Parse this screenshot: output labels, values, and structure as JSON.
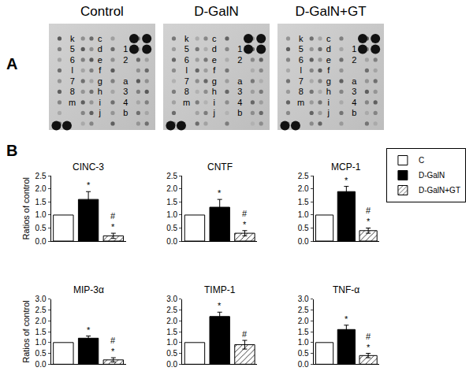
{
  "panel_a": {
    "label": "A",
    "blots": [
      {
        "title": "Control",
        "label_columns": [
          [
            "k",
            "5",
            "6",
            "l",
            "7",
            "8",
            "m"
          ],
          [
            "c",
            "d",
            "e",
            "f",
            "g",
            "h",
            "i",
            "j"
          ],
          [
            "1",
            "2",
            "a",
            "3",
            "4",
            "b"
          ]
        ]
      },
      {
        "title": "D-GalN",
        "label_columns": [
          [
            "k",
            "5",
            "6",
            "l",
            "7",
            "8",
            "m"
          ],
          [
            "c",
            "d",
            "e",
            "f",
            "g",
            "h",
            "i",
            "j"
          ],
          [
            "1",
            "2",
            "a",
            "3",
            "4",
            "b"
          ]
        ]
      },
      {
        "title": "D-GalN+GT",
        "label_columns": [
          [
            "k",
            "5",
            "6",
            "l",
            "7",
            "8",
            "m"
          ],
          [
            "c",
            "d",
            "e",
            "f",
            "g",
            "h",
            "i",
            "j"
          ],
          [
            "1",
            "2",
            "a",
            "3",
            "4",
            "b"
          ]
        ]
      }
    ]
  },
  "panel_b_label": "B",
  "chart_data": [
    {
      "type": "bar",
      "title": "CINC-3",
      "ylabel": "Ratios of control",
      "ylim": [
        0,
        2.5
      ],
      "yticks": [
        {
          "value": 0,
          "label": "0.0"
        },
        0.5,
        {
          "value": 1,
          "label": "1.0"
        },
        1.5,
        {
          "value": 2,
          "label": "2.0"
        },
        2.5
      ],
      "tick_labels": "y",
      "series": [
        {
          "name": "C",
          "color": "#ffffff",
          "values": [
            1.0
          ]
        },
        {
          "name": "D-GalN",
          "color": "#000000",
          "values": [
            1.6
          ],
          "errors": [
            0.3
          ],
          "significance": [
            "*"
          ]
        },
        {
          "name": "D-GalN+GT",
          "color": "#ffffff",
          "marker": "hatched",
          "values": [
            0.2
          ],
          "errors": [
            0.1
          ],
          "significance": [
            "#",
            "*"
          ]
        }
      ]
    },
    {
      "type": "bar",
      "title": "CNTF",
      "ylim": [
        0,
        2.5
      ],
      "yticks": [
        {
          "value": 0,
          "label": "0.0"
        },
        0.5,
        {
          "value": 1,
          "label": "1.0"
        },
        1.5,
        {
          "value": 2,
          "label": "2.0"
        },
        2.5
      ],
      "tick_labels": "y",
      "series": [
        {
          "name": "C",
          "color": "#ffffff",
          "values": [
            1.0
          ]
        },
        {
          "name": "D-GalN",
          "color": "#000000",
          "values": [
            1.3
          ],
          "errors": [
            0.3
          ],
          "significance": [
            "*"
          ]
        },
        {
          "name": "D-GalN+GT",
          "color": "#ffffff",
          "marker": "hatched",
          "values": [
            0.3
          ],
          "errors": [
            0.1
          ],
          "significance": [
            "#",
            "*"
          ]
        }
      ]
    },
    {
      "type": "bar",
      "title": "MCP-1",
      "ylim": [
        0,
        2.5
      ],
      "legend": "right",
      "yticks": [
        {
          "value": 0,
          "label": "0.0"
        },
        0.5,
        {
          "value": 1,
          "label": "1.0"
        },
        1.5,
        {
          "value": 2,
          "label": "2.0"
        },
        2.5
      ],
      "tick_labels": "y",
      "series": [
        {
          "name": "C",
          "color": "#ffffff",
          "values": [
            1.0
          ]
        },
        {
          "name": "D-GalN",
          "color": "#000000",
          "values": [
            1.9
          ],
          "errors": [
            0.2
          ],
          "significance": [
            "*"
          ]
        },
        {
          "name": "D-GalN+GT",
          "color": "#ffffff",
          "marker": "hatched",
          "values": [
            0.4
          ],
          "errors": [
            0.1
          ],
          "significance": [
            "#",
            "*"
          ]
        }
      ]
    },
    {
      "type": "bar",
      "title": "MIP-3α",
      "ylabel": "Ratios of control",
      "ylim": [
        0,
        3
      ],
      "yticks": [
        {
          "value": 0,
          "label": "0.0"
        },
        0.5,
        {
          "value": 1,
          "label": "1.0"
        },
        1.5,
        {
          "value": 2,
          "label": "2.0"
        },
        2.5,
        {
          "value": 3,
          "label": "3.0"
        }
      ],
      "tick_labels": "y",
      "series": [
        {
          "name": "C",
          "color": "#ffffff",
          "values": [
            1.0
          ]
        },
        {
          "name": "D-GalN",
          "color": "#000000",
          "values": [
            1.2
          ],
          "errors": [
            0.1
          ],
          "significance": [
            "*"
          ]
        },
        {
          "name": "D-GalN+GT",
          "color": "#ffffff",
          "marker": "hatched",
          "values": [
            0.2
          ],
          "errors": [
            0.1
          ],
          "significance": [
            "#",
            "*"
          ]
        }
      ]
    },
    {
      "type": "bar",
      "title": "TIMP-1",
      "ylim": [
        0,
        3
      ],
      "yticks": [
        {
          "value": 0,
          "label": "0.0"
        },
        0.5,
        {
          "value": 1,
          "label": "1.0"
        },
        1.5,
        {
          "value": 2,
          "label": "2.0"
        },
        2.5,
        {
          "value": 3,
          "label": "3.0"
        }
      ],
      "tick_labels": "y",
      "series": [
        {
          "name": "C",
          "color": "#ffffff",
          "values": [
            1.0
          ]
        },
        {
          "name": "D-GalN",
          "color": "#000000",
          "values": [
            2.2
          ],
          "errors": [
            0.2
          ],
          "significance": [
            "*"
          ]
        },
        {
          "name": "D-GalN+GT",
          "color": "#ffffff",
          "marker": "hatched",
          "values": [
            0.9
          ],
          "errors": [
            0.2
          ],
          "significance": [
            "#"
          ]
        }
      ]
    },
    {
      "type": "bar",
      "title": "TNF-α",
      "ylim": [
        0,
        3
      ],
      "yticks": [
        {
          "value": 0,
          "label": "0.0"
        },
        0.5,
        {
          "value": 1,
          "label": "1.0"
        },
        1.5,
        {
          "value": 2,
          "label": "2.0"
        },
        2.5,
        {
          "value": 3,
          "label": "3.0"
        }
      ],
      "tick_labels": "y",
      "series": [
        {
          "name": "C",
          "color": "#ffffff",
          "values": [
            1.0
          ]
        },
        {
          "name": "D-GalN",
          "color": "#000000",
          "values": [
            1.6
          ],
          "errors": [
            0.2
          ],
          "significance": [
            "*"
          ]
        },
        {
          "name": "D-GalN+GT",
          "color": "#ffffff",
          "marker": "hatched",
          "values": [
            0.4
          ],
          "errors": [
            0.1
          ],
          "significance": [
            "#",
            "*"
          ]
        }
      ]
    }
  ]
}
